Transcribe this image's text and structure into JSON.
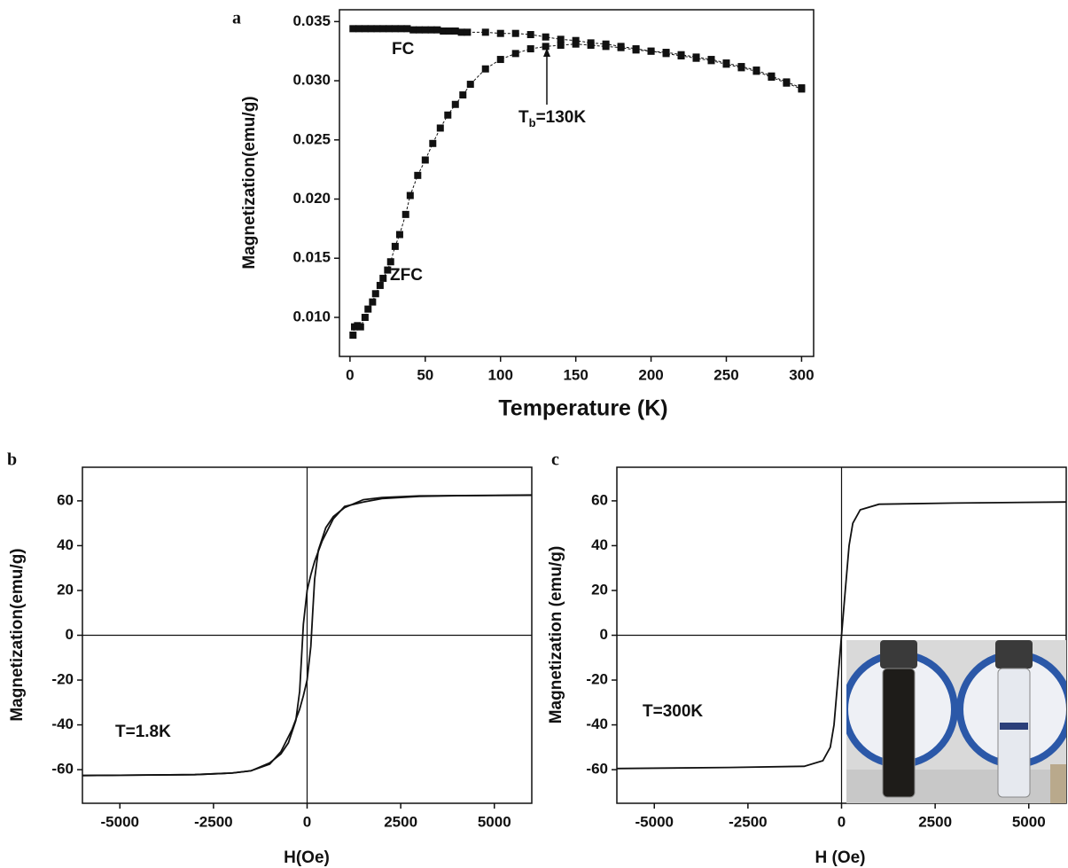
{
  "chart_data": [
    {
      "type": "line",
      "panel": "a",
      "marker": "square",
      "x_label": "Temperature (K)",
      "y_label": "Magnetization(emu/g)",
      "xlim": [
        -7,
        308
      ],
      "ylim": [
        0.0067,
        0.036
      ],
      "xticks": [
        0,
        50,
        100,
        150,
        200,
        250,
        300
      ],
      "yticks": [
        {
          "value": 0.01,
          "label": "0.010"
        },
        0.015,
        {
          "value": 0.02,
          "label": "0.020"
        },
        0.025,
        {
          "value": 0.03,
          "label": "0.030"
        },
        0.035
      ],
      "annotation": {
        "base": "T",
        "subscript": "b",
        "rest": "=130K"
      },
      "series": [
        {
          "name": "FC",
          "color": "#111111",
          "x": [
            2,
            6,
            10,
            14,
            18,
            22,
            26,
            30,
            34,
            38,
            42,
            46,
            50,
            54,
            58,
            62,
            66,
            70,
            74,
            78,
            90,
            100,
            110,
            120,
            130,
            140,
            150,
            160,
            170,
            180,
            190,
            200,
            210,
            220,
            230,
            240,
            250,
            260,
            270,
            280,
            290,
            300
          ],
          "values": [
            0.0344,
            0.0344,
            0.0344,
            0.0344,
            0.0344,
            0.0344,
            0.0344,
            0.0344,
            0.0344,
            0.0344,
            0.0343,
            0.0343,
            0.0343,
            0.0343,
            0.0343,
            0.0342,
            0.0342,
            0.0342,
            0.0341,
            0.0341,
            0.0341,
            0.034,
            0.034,
            0.0339,
            0.0337,
            0.0335,
            0.0334,
            0.0332,
            0.0331,
            0.0329,
            0.0327,
            0.0325,
            0.0324,
            0.0322,
            0.032,
            0.0318,
            0.0315,
            0.0312,
            0.0309,
            0.0304,
            0.0299,
            0.0294
          ]
        },
        {
          "name": "ZFC",
          "color": "#111111",
          "x": [
            2,
            3,
            5,
            7,
            10,
            12,
            15,
            17,
            20,
            22,
            25,
            27,
            30,
            33,
            37,
            40,
            45,
            50,
            55,
            60,
            65,
            70,
            75,
            80,
            90,
            100,
            110,
            120,
            130,
            140,
            150,
            160,
            170,
            180,
            190,
            200,
            210,
            220,
            230,
            240,
            250,
            260,
            270,
            280,
            290,
            300
          ],
          "values": [
            0.0085,
            0.0092,
            0.0093,
            0.0092,
            0.01,
            0.0107,
            0.0113,
            0.012,
            0.0127,
            0.0133,
            0.014,
            0.0147,
            0.016,
            0.017,
            0.0187,
            0.0203,
            0.022,
            0.0233,
            0.0247,
            0.026,
            0.0271,
            0.028,
            0.0288,
            0.0297,
            0.031,
            0.0318,
            0.0323,
            0.0327,
            0.0329,
            0.033,
            0.0331,
            0.033,
            0.0329,
            0.0328,
            0.0326,
            0.0325,
            0.0323,
            0.0321,
            0.0319,
            0.0317,
            0.0314,
            0.0311,
            0.0308,
            0.0303,
            0.0298,
            0.0293
          ]
        }
      ]
    },
    {
      "type": "line",
      "panel": "b",
      "zero_lines": true,
      "x_label": "H(Oe)",
      "y_label": "Magnetization(emu/g)",
      "xlim": [
        -6000,
        6000
      ],
      "ylim": [
        -75,
        75
      ],
      "xticks": [
        -5000,
        -2500,
        0,
        2500,
        5000
      ],
      "yticks": [
        -60,
        -40,
        -20,
        0,
        20,
        40,
        60
      ],
      "annotation_text": "T=1.8K",
      "series": [
        {
          "color": "#111111",
          "x": [
            6000,
            4000,
            3000,
            2000,
            1500,
            1000,
            700,
            400,
            200,
            100,
            0,
            -100,
            -150,
            -200,
            -300,
            -500,
            -700,
            -1000,
            -1500,
            -2000,
            -3000,
            -5000,
            -6000
          ],
          "values": [
            62.5,
            62.3,
            62,
            61,
            59.5,
            57.5,
            52,
            42,
            33,
            27,
            20,
            5,
            -10,
            -25,
            -38,
            -48,
            -53,
            -57,
            -60.5,
            -61.5,
            -62.2,
            -62.5,
            -62.6
          ]
        },
        {
          "color": "#111111",
          "x": [
            -6000,
            -5000,
            -3000,
            -2000,
            -1500,
            -1000,
            -700,
            -400,
            -200,
            -100,
            0,
            100,
            150,
            200,
            300,
            500,
            700,
            1000,
            1500,
            2000,
            3000,
            5000,
            6000
          ],
          "values": [
            -62.6,
            -62.5,
            -62.2,
            -61.5,
            -60.5,
            -57.5,
            -52,
            -42,
            -33,
            -27,
            -20,
            -5,
            10,
            25,
            38,
            48,
            53,
            57,
            60.5,
            61.5,
            62.2,
            62.5,
            62.6
          ]
        }
      ]
    },
    {
      "type": "line",
      "panel": "c",
      "zero_lines": true,
      "x_label": "H (Oe)",
      "y_label": "Magnetization (emu/g)",
      "xlim": [
        -6000,
        6000
      ],
      "ylim": [
        -75,
        75
      ],
      "xticks": [
        -5000,
        -2500,
        0,
        2500,
        5000
      ],
      "yticks": [
        -60,
        -40,
        -20,
        0,
        20,
        40,
        60
      ],
      "annotation_text": "T=300K",
      "series": [
        {
          "color": "#111111",
          "x": [
            -6000,
            -3000,
            -1000,
            -500,
            -300,
            -200,
            -100,
            0,
            100,
            200,
            300,
            500,
            1000,
            3000,
            6000
          ],
          "values": [
            -59.5,
            -59,
            -58.5,
            -56,
            -50,
            -40,
            -20,
            0,
            20,
            40,
            50,
            56,
            58.5,
            59,
            59.5
          ]
        }
      ]
    }
  ]
}
